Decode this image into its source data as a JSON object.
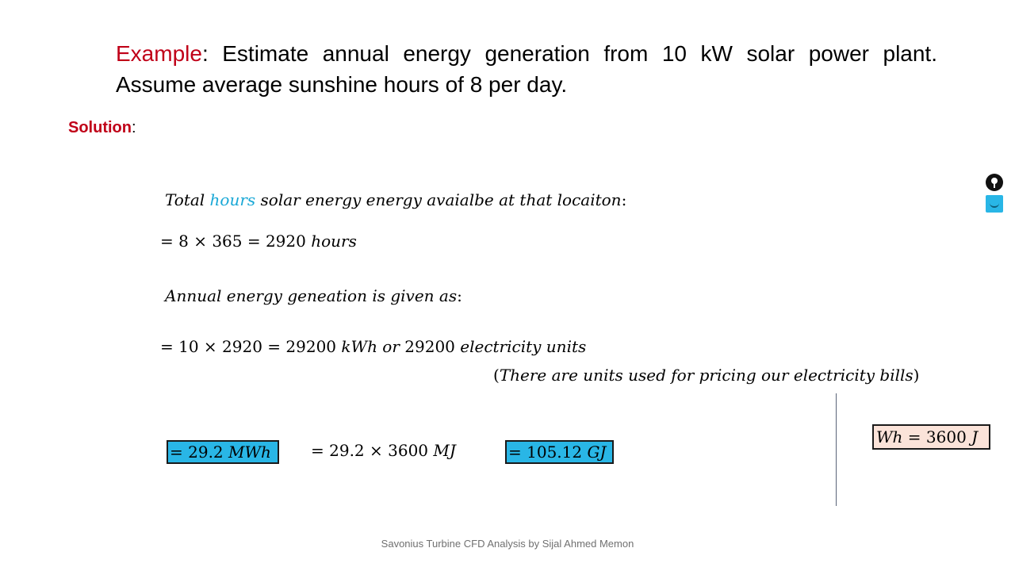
{
  "example": {
    "label": "Example",
    "text": ": Estimate annual energy generation from 10 kW solar power plant. Assume average sunshine hours of 8 per day."
  },
  "solution": {
    "label": "Solution",
    "colon": ":"
  },
  "lines": {
    "l1_a": "Total ",
    "l1_hours": "hours",
    "l1_b": " solar energy energy avaialbe at that locaiton",
    "l1_colon": ":",
    "l2": "= 8 × 365 = 2920 ",
    "l2_unit": "hours",
    "l3": "Annual energy geneation is given as",
    "l3_colon": ":",
    "l4_a": "= 10 × 2920 = 29200 ",
    "l4_b": "kWh or ",
    "l4_c": "29200 ",
    "l4_d": "electricity units",
    "l5_open": "(",
    "l5": "There are units used for pricing our electricity bills",
    "l5_close": ")"
  },
  "boxes": {
    "b1_num": "= 29.2 ",
    "b1_unit": "MWh",
    "mid_num": "= 29.2 × 3600 ",
    "mid_unit": "MJ",
    "b2_num": "= 105.12 ",
    "b2_unit": "GJ",
    "b3_a": "Wh",
    "b3_b": " = 3600 ",
    "b3_c": "J"
  },
  "footer": "Savonius Turbine CFD Analysis by Sijal Ahmed Memon",
  "icons": [
    "lightbulb-icon",
    "screen-smile-icon"
  ],
  "colors": {
    "accent_red": "#c00018",
    "highlight_cyan": "#29b6e6",
    "hours_cyan": "#1aa8d6",
    "box_peach": "#fbe3d9"
  }
}
